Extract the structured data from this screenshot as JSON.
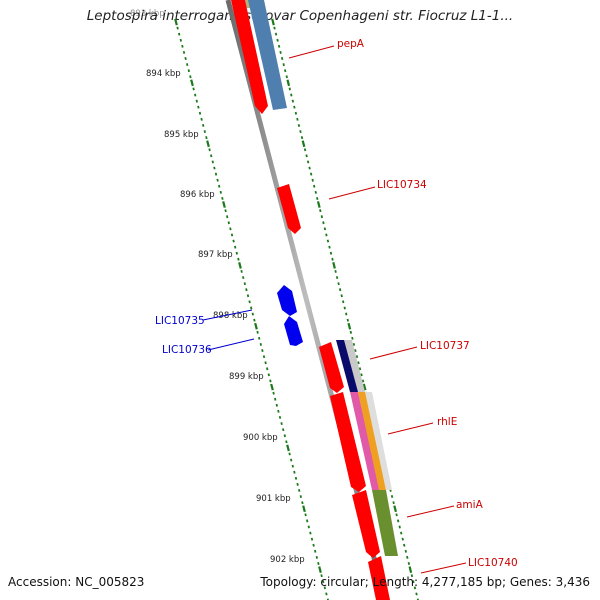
{
  "title": "Leptospira interrogans serovar Copenhageni str. Fiocruz L1-1...",
  "accession_text": "Accession: NC_005823",
  "summary_text": "Topology: circular; Length: 4,277,185 bp; Genes: 3,436",
  "ticks": [
    {
      "label": "893 kbp",
      "faded": true
    },
    {
      "label": "894 kbp"
    },
    {
      "label": "895 kbp"
    },
    {
      "label": "896 kbp"
    },
    {
      "label": "897 kbp"
    },
    {
      "label": "898 kbp"
    },
    {
      "label": "899 kbp"
    },
    {
      "label": "900 kbp"
    },
    {
      "label": "901 kbp"
    },
    {
      "label": "902 kbp"
    }
  ],
  "gene_labels": [
    {
      "name": "pepA",
      "strand": "forward"
    },
    {
      "name": "LIC10734",
      "strand": "forward"
    },
    {
      "name": "LIC10735",
      "strand": "reverse"
    },
    {
      "name": "LIC10736",
      "strand": "reverse"
    },
    {
      "name": "LIC10737",
      "strand": "forward"
    },
    {
      "name": "rhlE",
      "strand": "forward"
    },
    {
      "name": "amiA",
      "strand": "forward"
    },
    {
      "name": "LIC10740",
      "strand": "forward"
    }
  ],
  "colors": {
    "forward": "#cc0000",
    "reverse": "#0000cc",
    "cds": "#ff0000",
    "ruler_tick": "#1a7a1a",
    "backbone": "#8a8a8a",
    "pepA_hit": "#4f7fae",
    "olive_hit": "#b8b27a",
    "amiA_hit": "#6a8f2f",
    "navy_hit": "#0a0a6a",
    "magenta_hit": "#e05aa8",
    "orange_hit": "#f0a020"
  }
}
